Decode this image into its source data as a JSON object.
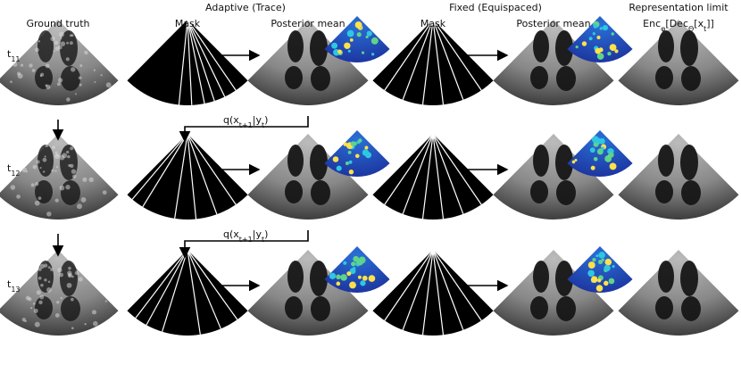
{
  "headers": {
    "ground_truth": "Ground truth",
    "adaptive": "Adaptive (Trace)",
    "fixed": "Fixed (Equispaced)",
    "representation": "Representation limit",
    "enc": [
      "Enc",
      "φ",
      "[Dec",
      "Θ",
      "[x",
      "t",
      "]]"
    ]
  },
  "columns": {
    "mask_adaptive": "Mask",
    "posterior_adaptive": "Posterior mean",
    "mask_fixed": "Mask",
    "posterior_fixed": "Posterior mean"
  },
  "rows": [
    [
      "t",
      "11"
    ],
    [
      "t",
      "12"
    ],
    [
      "t",
      "13"
    ]
  ],
  "transitions": [
    [
      "q(x",
      "t+1",
      "|y",
      "t",
      ")"
    ],
    [
      "q(x",
      "t+1",
      "|y",
      "t",
      ")"
    ]
  ]
}
